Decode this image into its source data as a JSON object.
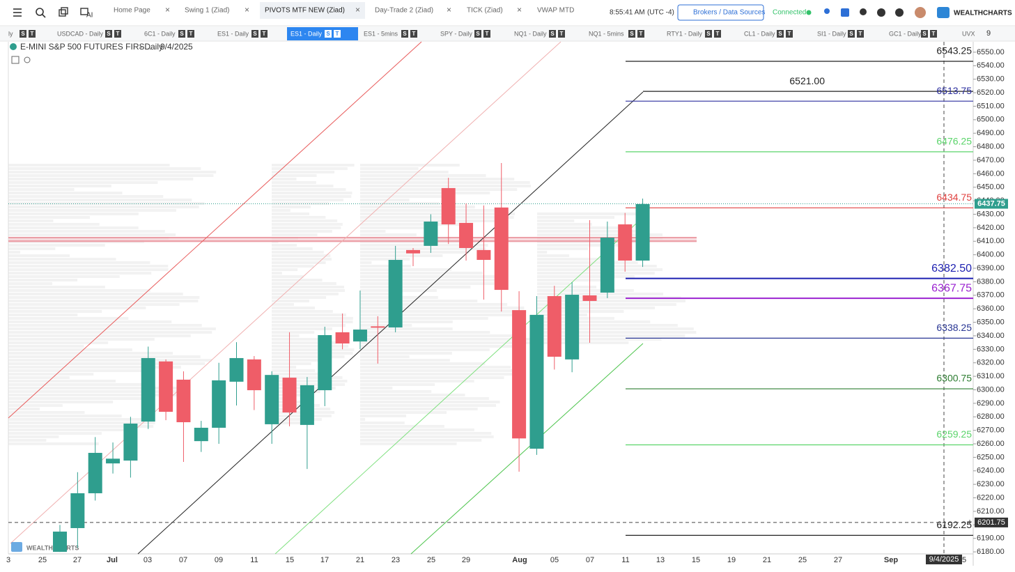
{
  "toolbar": {
    "tabs": [
      "Home Page",
      "Swing 1 (Ziad)",
      "PIVOTS MTF NEW (Ziad)",
      "Day-Trade 2 (Ziad)",
      "TICK (Ziad)",
      "VWAP MTD"
    ],
    "ai": "AI",
    "time": "8:55:41 AM",
    "timezone": "(UTC -4)",
    "brokers": "Brokers / Data Sources",
    "status": "Connected",
    "brand": "WEALTHCHARTS"
  },
  "symbol_tabs": {
    "badges": [
      "S",
      "T"
    ],
    "items": [
      "ly",
      "USDCAD - Daily",
      "6C1 - Daily",
      "ES1 - Daily",
      "ES1 - Daily",
      "ES1 - 5mins",
      "SPY - Daily",
      "NQ1 - Daily",
      "NQ1 - 5mins",
      "RTY1 - Daily",
      "CL1 - Daily",
      "SI1 - Daily",
      "GC1 - Daily",
      "UVX"
    ],
    "more": "9"
  },
  "chart_header": {
    "symbol": "E-MINI S&P 500 FUTURES FIRS...",
    "interval": "- Daily",
    "date": "9/4/2025"
  },
  "chart_data": {
    "type": "candlestick",
    "up_color": "#2f9e8e",
    "down_color": "#ef5d68",
    "candles": [
      {
        "open": 6180,
        "high": 6200,
        "low": 6180,
        "close": 6195
      },
      {
        "open": 6197.6,
        "high": 6239,
        "low": 6183,
        "close": 6223.4
      },
      {
        "open": 6223.4,
        "high": 6265,
        "low": 6218,
        "close": 6253.3
      },
      {
        "open": 6245.5,
        "high": 6261,
        "low": 6238,
        "close": 6249
      },
      {
        "open": 6247.6,
        "high": 6280,
        "low": 6235,
        "close": 6275
      },
      {
        "open": 6276.5,
        "high": 6332,
        "low": 6271,
        "close": 6323.5
      },
      {
        "open": 6321,
        "high": 6322.5,
        "low": 6277.5,
        "close": 6283.7
      },
      {
        "open": 6307.5,
        "high": 6313.7,
        "low": 6246.6,
        "close": 6276
      },
      {
        "open": 6262,
        "high": 6277,
        "low": 6254,
        "close": 6271.9
      },
      {
        "open": 6271.9,
        "high": 6320,
        "low": 6260,
        "close": 6307
      },
      {
        "open": 6306,
        "high": 6335.3,
        "low": 6288.4,
        "close": 6323.5
      },
      {
        "open": 6322.5,
        "high": 6325,
        "low": 6285,
        "close": 6299.7
      },
      {
        "open": 6274.5,
        "high": 6313.7,
        "low": 6260,
        "close": 6311
      },
      {
        "open": 6309,
        "high": 6342.6,
        "low": 6273,
        "close": 6283.2
      },
      {
        "open": 6274,
        "high": 6309.5,
        "low": 6241.4,
        "close": 6303.4
      },
      {
        "open": 6299.7,
        "high": 6346.7,
        "low": 6287.9,
        "close": 6340.5
      },
      {
        "open": 6342.6,
        "high": 6356.5,
        "low": 6330,
        "close": 6334.3
      },
      {
        "open": 6335.8,
        "high": 6373.5,
        "low": 6330,
        "close": 6344.6
      },
      {
        "open": 6347,
        "high": 6354.5,
        "low": 6319.4,
        "close": 6346
      },
      {
        "open": 6346.2,
        "high": 6406.6,
        "low": 6342.6,
        "close": 6396.2
      },
      {
        "open": 6403.5,
        "high": 6405,
        "low": 6391.6,
        "close": 6401
      },
      {
        "open": 6406.6,
        "high": 6430,
        "low": 6401.4,
        "close": 6424.6
      },
      {
        "open": 6449.4,
        "high": 6457,
        "low": 6408,
        "close": 6422.5
      },
      {
        "open": 6423.6,
        "high": 6438,
        "low": 6395.7,
        "close": 6405
      },
      {
        "open": 6403.5,
        "high": 6436.5,
        "low": 6366.8,
        "close": 6396.2
      },
      {
        "open": 6435,
        "high": 6467.9,
        "low": 6358,
        "close": 6374
      },
      {
        "open": 6359,
        "high": 6373,
        "low": 6239.4,
        "close": 6264
      },
      {
        "open": 6256.4,
        "high": 6369.4,
        "low": 6251.8,
        "close": 6355.5
      },
      {
        "open": 6369.4,
        "high": 6377,
        "low": 6315,
        "close": 6324.5
      },
      {
        "open": 6322.5,
        "high": 6379.7,
        "low": 6313,
        "close": 6370.4
      },
      {
        "open": 6369.9,
        "high": 6425.6,
        "low": 6334.8,
        "close": 6365.8
      },
      {
        "open": 6372,
        "high": 6424.6,
        "low": 6367.9,
        "close": 6412.7
      },
      {
        "open": 6422.5,
        "high": 6431,
        "low": 6387.5,
        "close": 6395.7
      },
      {
        "open": 6395.7,
        "high": 6441.6,
        "low": 6391,
        "close": 6437.5
      }
    ],
    "ylim": [
      6178.5,
      6557.7
    ],
    "yticks": [
      {
        "value": 6550,
        "label": "6550.00"
      },
      {
        "value": 6540,
        "label": "6540.00"
      },
      {
        "value": 6530,
        "label": "6530.00"
      },
      {
        "value": 6520,
        "label": "6520.00"
      },
      {
        "value": 6510,
        "label": "6510.00"
      },
      {
        "value": 6500,
        "label": "6500.00"
      },
      {
        "value": 6490,
        "label": "6490.00"
      },
      {
        "value": 6480,
        "label": "6480.00"
      },
      {
        "value": 6470,
        "label": "6470.00"
      },
      {
        "value": 6460,
        "label": "6460.00"
      },
      {
        "value": 6450,
        "label": "6450.00"
      },
      {
        "value": 6440,
        "label": "6440.00"
      },
      {
        "value": 6430,
        "label": "6430.00"
      },
      {
        "value": 6420,
        "label": "6420.00"
      },
      {
        "value": 6410,
        "label": "6410.00"
      },
      {
        "value": 6400,
        "label": "6400.00"
      },
      {
        "value": 6390,
        "label": "6390.00"
      },
      {
        "value": 6380,
        "label": "6380.00"
      },
      {
        "value": 6370,
        "label": "6370.00"
      },
      {
        "value": 6360,
        "label": "6360.00"
      },
      {
        "value": 6350,
        "label": "6350.00"
      },
      {
        "value": 6340,
        "label": "6340.00"
      },
      {
        "value": 6330,
        "label": "6330.00"
      },
      {
        "value": 6320,
        "label": "6320.00"
      },
      {
        "value": 6310,
        "label": "6310.00"
      },
      {
        "value": 6300,
        "label": "6300.00"
      },
      {
        "value": 6290,
        "label": "6290.00"
      },
      {
        "value": 6280,
        "label": "6280.00"
      },
      {
        "value": 6270,
        "label": "6270.00"
      },
      {
        "value": 6260,
        "label": "6260.00"
      },
      {
        "value": 6250,
        "label": "6250.00"
      },
      {
        "value": 6240,
        "label": "6240.00"
      },
      {
        "value": 6230,
        "label": "6230.00"
      },
      {
        "value": 6220,
        "label": "6220.00"
      },
      {
        "value": 6210,
        "label": "6210.00"
      },
      {
        "value": 6200,
        "label": "6200.00"
      },
      {
        "value": 6190,
        "label": "6190.00"
      },
      {
        "value": 6180,
        "label": "6180.00"
      }
    ],
    "x_labels": [
      "3",
      "25",
      "27",
      "Jul",
      "03",
      "07",
      "09",
      "11",
      "15",
      "17",
      "21",
      "23",
      "25",
      "29",
      "Aug",
      "05",
      "07",
      "11",
      "13",
      "15",
      "19",
      "21",
      "25",
      "27",
      "Sep",
      "5"
    ],
    "cursor_date": "9/4/2025",
    "levels": [
      {
        "value": 6543.25,
        "label": "6543.25",
        "color": "#222222"
      },
      {
        "value": 6521,
        "label": "6521.00",
        "color": "#222222"
      },
      {
        "value": 6513.75,
        "label": "6513.75",
        "color": "#2b2f9e"
      },
      {
        "value": 6476.25,
        "label": "6476.25",
        "color": "#5ad46a"
      },
      {
        "value": 6434.75,
        "label": "6434.75",
        "color": "#e0403f"
      },
      {
        "value": 6382.5,
        "label": "6382.50",
        "color": "#1c1fb0"
      },
      {
        "value": 6367.75,
        "label": "6367.75",
        "color": "#9a22d0"
      },
      {
        "value": 6338.25,
        "label": "6338.25",
        "color": "#283593"
      },
      {
        "value": 6300.75,
        "label": "6300.75",
        "color": "#2e7d32"
      },
      {
        "value": 6259.25,
        "label": "6259.25",
        "color": "#5ad46a"
      },
      {
        "value": 6192.25,
        "label": "6192.25",
        "color": "#222222"
      }
    ],
    "last_price": {
      "value": 6437.75,
      "label": "6437.75"
    },
    "cursor_price": {
      "value": 6201.75,
      "label": "6201.75"
    },
    "watermark": "WEALTHCHARTS"
  }
}
